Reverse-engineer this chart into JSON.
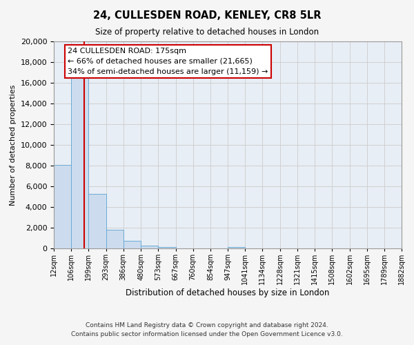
{
  "title": "24, CULLESDEN ROAD, KENLEY, CR8 5LR",
  "subtitle": "Size of property relative to detached houses in London",
  "xlabel": "Distribution of detached houses by size in London",
  "ylabel": "Number of detached properties",
  "bin_labels": [
    "12sqm",
    "106sqm",
    "199sqm",
    "293sqm",
    "386sqm",
    "480sqm",
    "573sqm",
    "667sqm",
    "760sqm",
    "854sqm",
    "947sqm",
    "1041sqm",
    "1134sqm",
    "1228sqm",
    "1321sqm",
    "1415sqm",
    "1508sqm",
    "1602sqm",
    "1695sqm",
    "1789sqm",
    "1882sqm"
  ],
  "bar_values": [
    8100,
    16600,
    5300,
    1800,
    750,
    280,
    130,
    0,
    0,
    0,
    120,
    0,
    0,
    0,
    0,
    0,
    0,
    0,
    0,
    0
  ],
  "bar_color": "#ccdcee",
  "bar_edgecolor": "#6aaad4",
  "ylim": [
    0,
    20000
  ],
  "yticks": [
    0,
    2000,
    4000,
    6000,
    8000,
    10000,
    12000,
    14000,
    16000,
    18000,
    20000
  ],
  "property_line_label": "24 CULLESDEN ROAD: 175sqm",
  "annotation_line1": "← 66% of detached houses are smaller (21,665)",
  "annotation_line2": "34% of semi-detached houses are larger (11,159) →",
  "annotation_box_color": "#ffffff",
  "annotation_box_edgecolor": "#cc0000",
  "vline_color": "#cc0000",
  "bin_edges": [
    12,
    106,
    199,
    293,
    386,
    480,
    573,
    667,
    760,
    854,
    947,
    1041,
    1134,
    1228,
    1321,
    1415,
    1508,
    1602,
    1695,
    1789,
    1882
  ],
  "footnote1": "Contains HM Land Registry data © Crown copyright and database right 2024.",
  "footnote2": "Contains public sector information licensed under the Open Government Licence v3.0.",
  "grid_color": "#cccccc",
  "bg_color": "#e8eef5",
  "fig_bg_color": "#f5f5f5"
}
